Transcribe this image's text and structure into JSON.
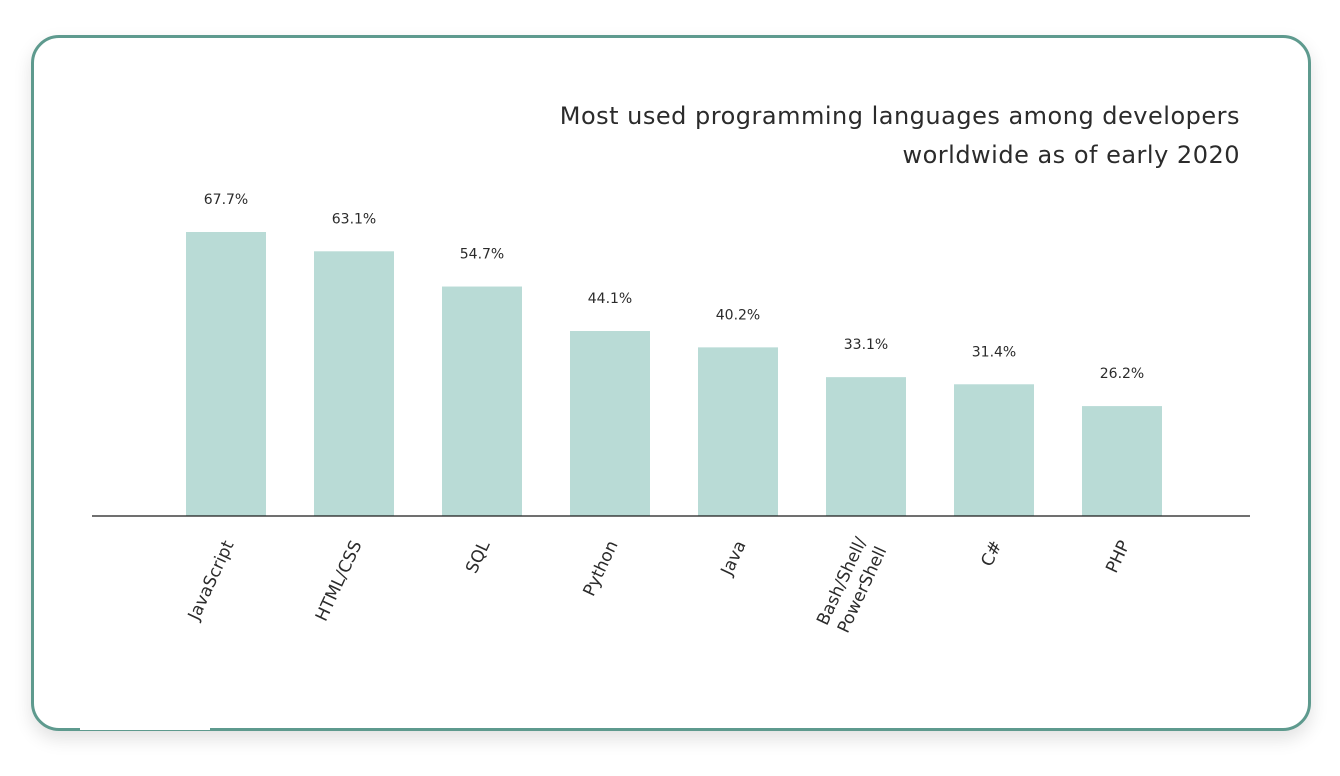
{
  "chart_data": {
    "type": "bar",
    "title_lines": [
      "Most used programming languages among developers",
      "worldwide as of early 2020"
    ],
    "categories": [
      [
        "JavaScript"
      ],
      [
        "HTML/CSS"
      ],
      [
        "SQL"
      ],
      [
        "Python"
      ],
      [
        "Java"
      ],
      [
        "Bash/Shell/",
        "PowerShell"
      ],
      [
        "C#"
      ],
      [
        "PHP"
      ]
    ],
    "values": [
      67.7,
      63.1,
      54.7,
      44.1,
      40.2,
      33.1,
      31.4,
      26.2
    ],
    "value_labels": [
      "67.7%",
      "63.1%",
      "54.7%",
      "44.1%",
      "40.2%",
      "33.1%",
      "31.4%",
      "26.2%"
    ],
    "xlabel": "",
    "ylabel": "",
    "ylim": [
      0,
      75
    ],
    "grid": false,
    "bar_color": "#b9dbd6",
    "axis_color": "#1a1a1a",
    "border_color": "#5e9a8e"
  }
}
